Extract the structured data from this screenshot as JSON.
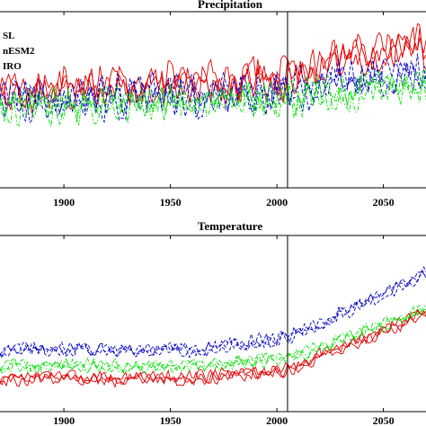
{
  "chart_data": [
    {
      "type": "line",
      "title": "Precipitation",
      "xlabel": "",
      "ylabel": "",
      "xlim": [
        1870,
        2070
      ],
      "ylim": [
        0,
        100
      ],
      "xticks": [
        1900,
        1950,
        2000,
        2050
      ],
      "vline": 2005,
      "legend": {
        "placement": "top-left",
        "entries": [
          "SL",
          "nESM2",
          "IRO"
        ]
      },
      "series": [
        {
          "name": "SL",
          "color": "#e00000",
          "dash": "solid",
          "base": [
            [
              1870,
              55
            ],
            [
              2005,
              62
            ],
            [
              2030,
              76
            ],
            [
              2070,
              80
            ]
          ],
          "amp": 14
        },
        {
          "name": "nESM2",
          "color": "#0000c0",
          "dash": "dashed",
          "base": [
            [
              1870,
              49
            ],
            [
              2005,
              54
            ],
            [
              2030,
              62
            ],
            [
              2070,
              64
            ]
          ],
          "amp": 14
        },
        {
          "name": "IRO",
          "color": "#00e000",
          "dash": "dashdot",
          "base": [
            [
              1870,
              46
            ],
            [
              2005,
              50
            ],
            [
              2030,
              54
            ],
            [
              2070,
              56
            ]
          ],
          "amp": 13
        }
      ]
    },
    {
      "type": "line",
      "title": "Temperature",
      "xlabel": "",
      "ylabel": "",
      "xlim": [
        1870,
        2070
      ],
      "ylim": [
        0,
        100
      ],
      "xticks": [
        1900,
        1950,
        2000,
        2050
      ],
      "vline": 2005,
      "series": [
        {
          "name": "SL",
          "color": "#e00000",
          "dash": "solid",
          "base": [
            [
              1870,
              19
            ],
            [
              1960,
              19
            ],
            [
              2005,
              24
            ],
            [
              2070,
              56
            ]
          ],
          "amp": 5
        },
        {
          "name": "nESM2",
          "color": "#0000c0",
          "dash": "dashed",
          "base": [
            [
              1870,
              35
            ],
            [
              1960,
              35
            ],
            [
              2005,
              42
            ],
            [
              2070,
              78
            ]
          ],
          "amp": 5
        },
        {
          "name": "IRO",
          "color": "#00e000",
          "dash": "dashdot",
          "base": [
            [
              1870,
              26
            ],
            [
              1960,
              26
            ],
            [
              2005,
              30
            ],
            [
              2070,
              58
            ]
          ],
          "amp": 5
        }
      ]
    }
  ]
}
